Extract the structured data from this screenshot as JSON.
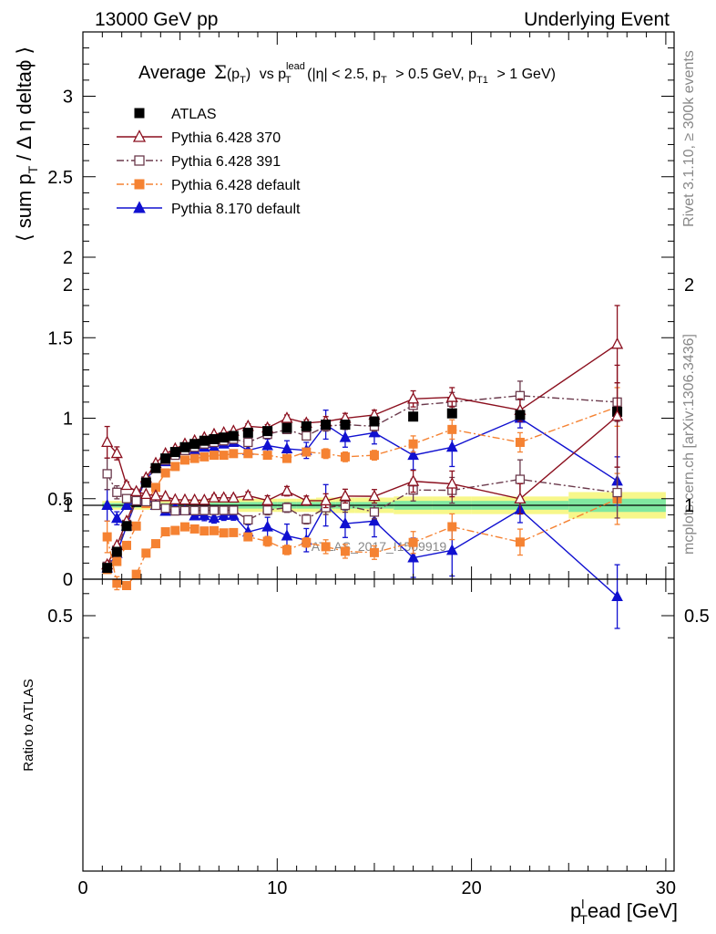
{
  "header": {
    "left": "13000 GeV pp",
    "right": "Underlying Event"
  },
  "title": {
    "average": "Average",
    "sigma": "Σ",
    "sigma_arg": "(p",
    "sigma_sub": "T",
    "sigma_close": ")",
    "vs": "vs p",
    "vs_sup": "lead",
    "vs_sub": "T",
    "cuts_a": "(|η| < 2.5, p",
    "cuts_a_sub": "T",
    "cuts_b": "> 0.5 GeV, p",
    "cuts_b_sub": "T1",
    "cuts_c": "> 1 GeV)"
  },
  "side_labels": {
    "rivet": "Rivet 3.1.10, ≥ 300k events",
    "mcplots": "mcplots.cern.ch [arXiv:1306.3436]"
  },
  "watermark": "ATLAS_2017_I1509919",
  "ylabel_main": {
    "a": "⟨ sum p",
    "a_sub": "T",
    "b": "/ Δ η deltaϕ ⟩"
  },
  "ylabel_ratio": "Ratio to ATLAS",
  "xlabel": {
    "p": "p",
    "sup": "l",
    "sub": "T",
    "rest": "ead [GeV]"
  },
  "legend": [
    {
      "label": "ATLAS"
    },
    {
      "label": "Pythia 6.428 370"
    },
    {
      "label": "Pythia 6.428 391"
    },
    {
      "label": "Pythia 6.428 default"
    },
    {
      "label": "Pythia 8.170 default"
    }
  ],
  "chart_data": {
    "type": "scatter",
    "x": [
      1.25,
      1.75,
      2.25,
      2.75,
      3.25,
      3.75,
      4.25,
      4.75,
      5.25,
      5.75,
      6.25,
      6.75,
      7.25,
      7.75,
      8.5,
      9.5,
      10.5,
      11.5,
      12.5,
      13.5,
      15.0,
      17.0,
      19.0,
      22.5,
      27.5
    ],
    "x_err": [
      0.25,
      0.25,
      0.25,
      0.25,
      0.25,
      0.25,
      0.25,
      0.25,
      0.25,
      0.25,
      0.25,
      0.25,
      0.25,
      0.25,
      0.5,
      0.5,
      0.5,
      0.5,
      0.5,
      0.5,
      1.0,
      1.0,
      1.0,
      2.5,
      2.5
    ],
    "series": [
      {
        "name": "ATLAS",
        "color": "#000000",
        "marker": "filled-square",
        "line": "none",
        "values": [
          0.07,
          0.17,
          0.33,
          0.48,
          0.6,
          0.69,
          0.75,
          0.79,
          0.82,
          0.84,
          0.86,
          0.87,
          0.88,
          0.89,
          0.91,
          0.92,
          0.94,
          0.95,
          0.96,
          0.96,
          0.98,
          1.01,
          1.03,
          1.02,
          1.04
        ]
      },
      {
        "name": "Pythia 6.428 370",
        "color": "#8b0f1e",
        "marker": "open-triangle",
        "line": "solid",
        "values": [
          0.09,
          0.21,
          0.36,
          0.51,
          0.63,
          0.72,
          0.78,
          0.81,
          0.84,
          0.86,
          0.88,
          0.9,
          0.91,
          0.92,
          0.95,
          0.94,
          1.0,
          0.97,
          0.98,
          1.0,
          1.02,
          1.12,
          1.13,
          1.05,
          1.46
        ],
        "errors": [
          0.005,
          0.005,
          0.005,
          0.005,
          0.005,
          0.005,
          0.005,
          0.005,
          0.005,
          0.008,
          0.008,
          0.01,
          0.01,
          0.01,
          0.015,
          0.02,
          0.02,
          0.02,
          0.03,
          0.03,
          0.03,
          0.05,
          0.06,
          0.07,
          0.24
        ]
      },
      {
        "name": "Pythia 6.428 391",
        "color": "#6b3a4c",
        "marker": "open-square",
        "line": "dashdot",
        "values": [
          0.08,
          0.18,
          0.34,
          0.49,
          0.61,
          0.69,
          0.74,
          0.77,
          0.8,
          0.82,
          0.84,
          0.85,
          0.86,
          0.87,
          0.85,
          0.9,
          0.93,
          0.89,
          0.95,
          0.96,
          0.95,
          1.08,
          1.1,
          1.14,
          1.1
        ],
        "errors": [
          0.005,
          0.005,
          0.005,
          0.005,
          0.005,
          0.005,
          0.005,
          0.005,
          0.005,
          0.008,
          0.008,
          0.01,
          0.01,
          0.01,
          0.015,
          0.02,
          0.02,
          0.02,
          0.03,
          0.03,
          0.03,
          0.05,
          0.06,
          0.09,
          0.12
        ]
      },
      {
        "name": "Pythia 6.428 default",
        "color": "#f58232",
        "marker": "filled-square",
        "line": "dashdot",
        "values": [
          0.06,
          0.11,
          0.21,
          0.33,
          0.47,
          0.57,
          0.66,
          0.7,
          0.74,
          0.75,
          0.76,
          0.77,
          0.77,
          0.78,
          0.78,
          0.77,
          0.75,
          0.79,
          0.78,
          0.76,
          0.77,
          0.84,
          0.93,
          0.85,
          1.07
        ],
        "errors": [
          0.005,
          0.005,
          0.005,
          0.005,
          0.005,
          0.005,
          0.005,
          0.005,
          0.005,
          0.008,
          0.008,
          0.01,
          0.01,
          0.01,
          0.015,
          0.02,
          0.02,
          0.02,
          0.03,
          0.03,
          0.03,
          0.05,
          0.06,
          0.06,
          0.12
        ]
      },
      {
        "name": "Pythia 8.170 default",
        "color": "#1010d0",
        "marker": "filled-triangle",
        "line": "solid",
        "values": [
          0.07,
          0.16,
          0.33,
          0.49,
          0.62,
          0.69,
          0.73,
          0.78,
          0.8,
          0.8,
          0.82,
          0.82,
          0.84,
          0.85,
          0.8,
          0.83,
          0.81,
          0.8,
          0.96,
          0.88,
          0.91,
          0.77,
          0.82,
          1.0,
          0.61
        ],
        "errors": [
          0.005,
          0.005,
          0.005,
          0.005,
          0.005,
          0.008,
          0.01,
          0.01,
          0.01,
          0.015,
          0.02,
          0.02,
          0.02,
          0.02,
          0.03,
          0.04,
          0.05,
          0.05,
          0.09,
          0.06,
          0.07,
          0.09,
          0.12,
          0.06,
          0.15
        ]
      }
    ],
    "ratio_band_inner": [
      0.01,
      0.01,
      0.01,
      0.01,
      0.01,
      0.01,
      0.01,
      0.01,
      0.01,
      0.012,
      0.012,
      0.012,
      0.012,
      0.012,
      0.015,
      0.015,
      0.015,
      0.015,
      0.015,
      0.015,
      0.015,
      0.02,
      0.02,
      0.02,
      0.03
    ],
    "ratio_band_outer": [
      0.02,
      0.02,
      0.02,
      0.02,
      0.02,
      0.02,
      0.02,
      0.02,
      0.02,
      0.025,
      0.025,
      0.025,
      0.025,
      0.025,
      0.03,
      0.03,
      0.03,
      0.03,
      0.035,
      0.035,
      0.035,
      0.04,
      0.04,
      0.04,
      0.06
    ],
    "xlim": [
      0,
      30
    ],
    "ylim_main": [
      0,
      3.4
    ],
    "ylim_ratio": [
      0.35,
      2.25
    ],
    "x_ticks": [
      0,
      10,
      20,
      30
    ],
    "y_ticks_main": [
      0,
      0.5,
      1,
      1.5,
      2,
      2.5,
      3
    ],
    "y_tick_labels_main": [
      "0",
      "0.5",
      "1",
      "1.5",
      "2",
      "2.5",
      "3"
    ],
    "y_ticks_ratio": [
      0.5,
      1,
      2
    ],
    "y_tick_labels_ratio": [
      "0.5",
      "1",
      "2"
    ],
    "grid": false,
    "legend_position": "top-left"
  }
}
